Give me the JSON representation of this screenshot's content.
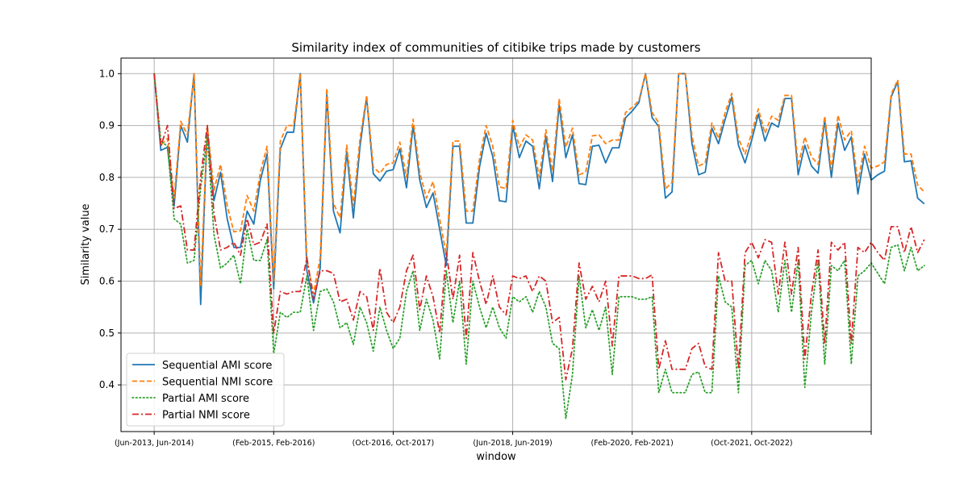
{
  "chart_data": {
    "type": "line",
    "title": "Similarity index of communities of citibike trips made by customers",
    "xlabel": "window",
    "ylabel": "Similarity value",
    "ylim": [
      0.31,
      1.03
    ],
    "xlim": [
      -5,
      108
    ],
    "grid": true,
    "legend_position": "lower-left",
    "yticks": [
      0.4,
      0.5,
      0.6,
      0.7,
      0.8,
      0.9,
      1.0
    ],
    "ytick_labels": [
      "0.4",
      "0.5",
      "0.6",
      "0.7",
      "0.8",
      "0.9",
      "1.0"
    ],
    "xticks": [
      0,
      18,
      36,
      54,
      72,
      90,
      108
    ],
    "xtick_labels": [
      "(Jun-2013, Jun-2014)",
      "(Feb-2015, Feb-2016)",
      "(Oct-2016, Oct-2017)",
      "(Jun-2018, Jun-2019)",
      "(Feb-2020, Feb-2021)",
      "(Oct-2021, Oct-2022)",
      ""
    ],
    "series": [
      {
        "name": "Sequential AMI score",
        "color": "#1f77b4",
        "style": "solid",
        "values": [
          1.0,
          0.852,
          0.858,
          0.745,
          0.9,
          0.868,
          1.0,
          0.555,
          0.895,
          0.755,
          0.81,
          0.72,
          0.665,
          0.665,
          0.735,
          0.71,
          0.795,
          0.845,
          0.585,
          0.855,
          0.887,
          0.887,
          1.0,
          0.62,
          0.558,
          0.625,
          0.96,
          0.735,
          0.693,
          0.85,
          0.722,
          0.86,
          0.955,
          0.807,
          0.793,
          0.812,
          0.815,
          0.855,
          0.78,
          0.9,
          0.795,
          0.742,
          0.77,
          0.7,
          0.63,
          0.86,
          0.86,
          0.712,
          0.712,
          0.82,
          0.885,
          0.84,
          0.755,
          0.753,
          0.9,
          0.838,
          0.87,
          0.86,
          0.778,
          0.88,
          0.792,
          0.94,
          0.838,
          0.882,
          0.788,
          0.786,
          0.86,
          0.862,
          0.828,
          0.857,
          0.857,
          0.915,
          0.928,
          0.944,
          1.0,
          0.915,
          0.898,
          0.76,
          0.772,
          1.0,
          1.0,
          0.865,
          0.805,
          0.81,
          0.895,
          0.865,
          0.912,
          0.955,
          0.862,
          0.828,
          0.872,
          0.922,
          0.87,
          0.905,
          0.897,
          0.952,
          0.952,
          0.805,
          0.862,
          0.822,
          0.808,
          0.91,
          0.8,
          0.905,
          0.852,
          0.878,
          0.768,
          0.845,
          0.795,
          0.805,
          0.812,
          0.955,
          0.985,
          0.83,
          0.832,
          0.76,
          0.749
        ]
      },
      {
        "name": "Sequential NMI score",
        "color": "#ff7f0e",
        "style": "dashed",
        "values": [
          1.0,
          0.862,
          0.875,
          0.76,
          0.908,
          0.882,
          1.0,
          0.59,
          0.9,
          0.775,
          0.825,
          0.745,
          0.695,
          0.697,
          0.765,
          0.735,
          0.81,
          0.86,
          0.6,
          0.87,
          0.9,
          0.9,
          1.0,
          0.64,
          0.575,
          0.645,
          0.972,
          0.75,
          0.722,
          0.862,
          0.745,
          0.875,
          0.957,
          0.82,
          0.808,
          0.825,
          0.828,
          0.868,
          0.8,
          0.912,
          0.81,
          0.76,
          0.792,
          0.72,
          0.65,
          0.87,
          0.87,
          0.735,
          0.735,
          0.835,
          0.9,
          0.86,
          0.782,
          0.778,
          0.91,
          0.858,
          0.882,
          0.872,
          0.8,
          0.892,
          0.812,
          0.952,
          0.858,
          0.895,
          0.805,
          0.81,
          0.88,
          0.882,
          0.865,
          0.872,
          0.872,
          0.925,
          0.935,
          0.948,
          1.0,
          0.925,
          0.905,
          0.778,
          0.79,
          1.0,
          1.0,
          0.88,
          0.822,
          0.828,
          0.905,
          0.875,
          0.925,
          0.962,
          0.875,
          0.845,
          0.885,
          0.932,
          0.885,
          0.918,
          0.91,
          0.958,
          0.958,
          0.822,
          0.878,
          0.84,
          0.825,
          0.918,
          0.815,
          0.92,
          0.872,
          0.89,
          0.79,
          0.86,
          0.818,
          0.822,
          0.83,
          0.96,
          0.988,
          0.845,
          0.845,
          0.785,
          0.772
        ]
      },
      {
        "name": "Partial AMI score",
        "color": "#2ca02c",
        "style": "dotted",
        "values": [
          1.0,
          0.87,
          0.86,
          0.72,
          0.71,
          0.635,
          0.64,
          0.78,
          0.88,
          0.69,
          0.625,
          0.635,
          0.65,
          0.595,
          0.7,
          0.64,
          0.64,
          0.68,
          0.46,
          0.54,
          0.53,
          0.54,
          0.54,
          0.61,
          0.505,
          0.58,
          0.585,
          0.56,
          0.51,
          0.52,
          0.478,
          0.55,
          0.52,
          0.465,
          0.55,
          0.505,
          0.47,
          0.49,
          0.58,
          0.62,
          0.505,
          0.565,
          0.525,
          0.45,
          0.62,
          0.52,
          0.6,
          0.44,
          0.6,
          0.55,
          0.51,
          0.55,
          0.51,
          0.49,
          0.57,
          0.56,
          0.57,
          0.54,
          0.58,
          0.55,
          0.48,
          0.47,
          0.335,
          0.42,
          0.61,
          0.51,
          0.545,
          0.505,
          0.55,
          0.42,
          0.57,
          0.57,
          0.57,
          0.565,
          0.565,
          0.57,
          0.385,
          0.43,
          0.385,
          0.385,
          0.385,
          0.42,
          0.425,
          0.385,
          0.385,
          0.61,
          0.56,
          0.55,
          0.385,
          0.63,
          0.64,
          0.595,
          0.64,
          0.62,
          0.54,
          0.64,
          0.54,
          0.64,
          0.395,
          0.54,
          0.64,
          0.44,
          0.63,
          0.62,
          0.64,
          0.44,
          0.61,
          0.62,
          0.635,
          0.615,
          0.595,
          0.665,
          0.67,
          0.62,
          0.665,
          0.62,
          0.63
        ]
      },
      {
        "name": "Partial NMI score",
        "color": "#d62728",
        "style": "dashdot",
        "values": [
          1.0,
          0.86,
          0.9,
          0.74,
          0.745,
          0.66,
          0.66,
          0.8,
          0.9,
          0.73,
          0.66,
          0.665,
          0.675,
          0.65,
          0.72,
          0.67,
          0.675,
          0.71,
          0.5,
          0.58,
          0.575,
          0.58,
          0.58,
          0.645,
          0.565,
          0.62,
          0.62,
          0.615,
          0.56,
          0.565,
          0.525,
          0.58,
          0.57,
          0.505,
          0.625,
          0.54,
          0.52,
          0.55,
          0.62,
          0.65,
          0.545,
          0.61,
          0.57,
          0.5,
          0.655,
          0.565,
          0.65,
          0.49,
          0.655,
          0.6,
          0.555,
          0.61,
          0.55,
          0.535,
          0.61,
          0.605,
          0.61,
          0.58,
          0.61,
          0.6,
          0.52,
          0.53,
          0.41,
          0.47,
          0.635,
          0.565,
          0.59,
          0.56,
          0.6,
          0.475,
          0.61,
          0.61,
          0.61,
          0.605,
          0.605,
          0.612,
          0.43,
          0.485,
          0.43,
          0.43,
          0.43,
          0.47,
          0.48,
          0.435,
          0.43,
          0.655,
          0.6,
          0.6,
          0.43,
          0.655,
          0.675,
          0.645,
          0.68,
          0.675,
          0.575,
          0.675,
          0.575,
          0.665,
          0.45,
          0.575,
          0.66,
          0.48,
          0.675,
          0.66,
          0.675,
          0.48,
          0.665,
          0.655,
          0.675,
          0.655,
          0.64,
          0.705,
          0.705,
          0.655,
          0.705,
          0.655,
          0.68
        ]
      }
    ]
  }
}
